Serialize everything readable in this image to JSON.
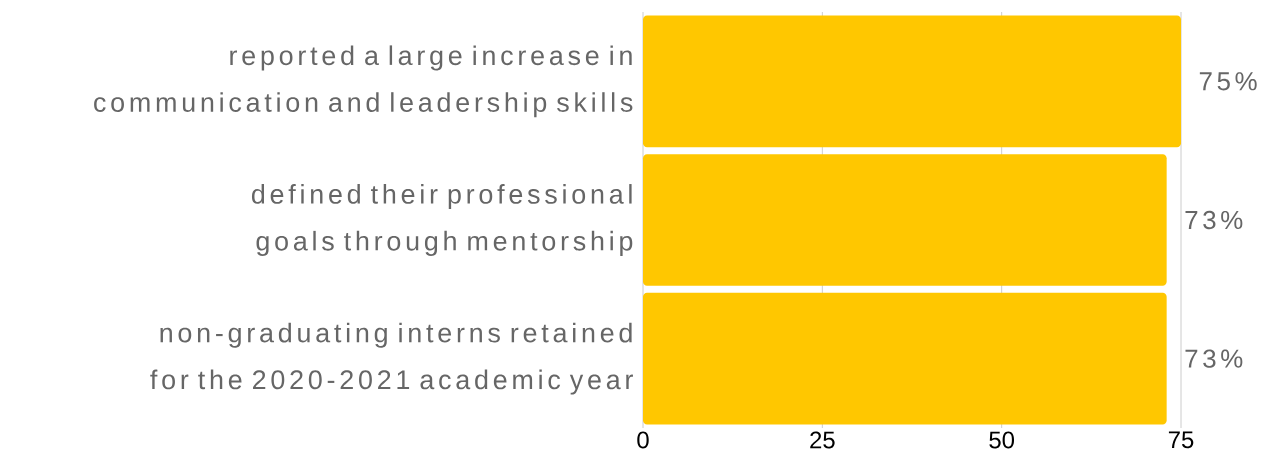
{
  "chart_data": {
    "type": "bar",
    "orientation": "horizontal",
    "categories": [
      "reported a large increase in communication and leadership skills",
      "defined their professional goals through mentorship",
      "non-graduating interns retained for the 2020-2021 academic year"
    ],
    "values": [
      75,
      73,
      73
    ],
    "value_labels": [
      "75%",
      "73%",
      "73%"
    ],
    "color": "#ffc700",
    "xlim": [
      0,
      75
    ],
    "xticks": [
      0,
      25,
      50,
      75
    ],
    "grid": "x"
  }
}
